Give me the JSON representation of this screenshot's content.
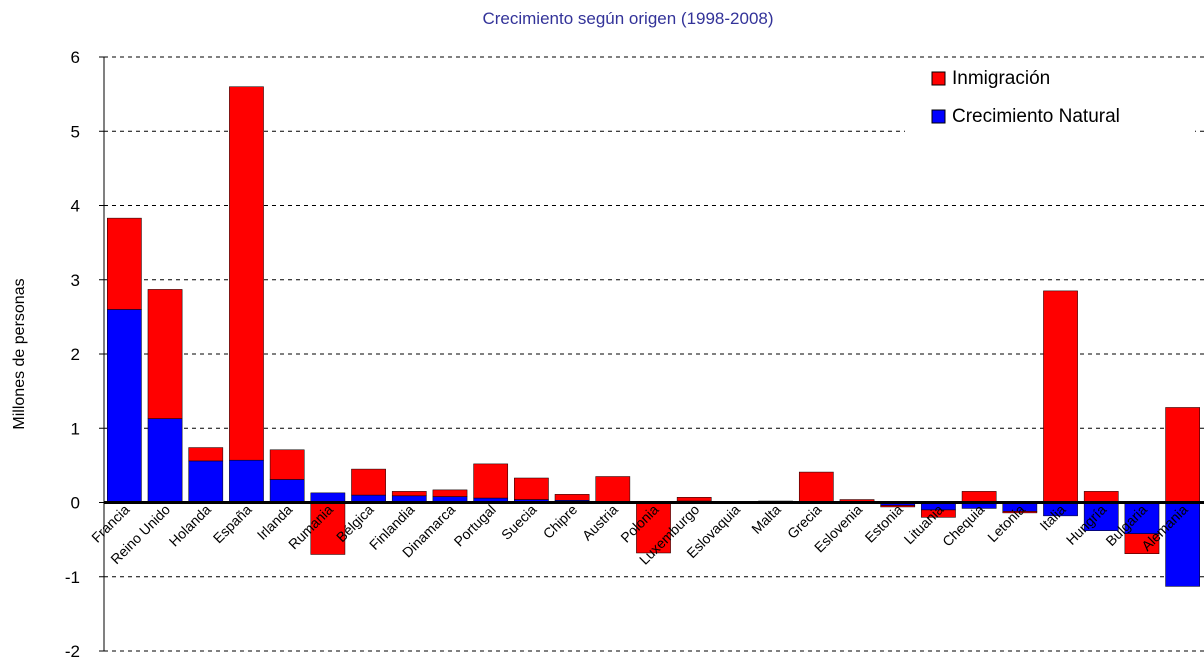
{
  "chart_data": {
    "type": "bar",
    "stacked": true,
    "title": "Crecimiento según origen (1998-2008)",
    "y_label": "Millones de personas",
    "categories": [
      "Francia",
      "Reino Unido",
      "Holanda",
      "España",
      "Irlanda",
      "Rumania",
      "Bélgica",
      "Finlandia",
      "Dinamarca",
      "Portugal",
      "Suecia",
      "Chipre",
      "Austria",
      "Polonia",
      "Luxemburgo",
      "Eslovaquia",
      "Malta",
      "Grecia",
      "Eslovenia",
      "Estonia",
      "Lituania",
      "Chequia",
      "Letonia",
      "Italia",
      "Hungría",
      "Bulgaria",
      "Alemania"
    ],
    "series": [
      {
        "name": "Crecimiento Natural",
        "color": "#0000ff",
        "values": [
          2.6,
          1.13,
          0.56,
          0.57,
          0.31,
          0.13,
          0.1,
          0.09,
          0.08,
          0.06,
          0.04,
          0.03,
          0.01,
          0,
          0.02,
          0.01,
          0.01,
          0.01,
          0.01,
          -0.04,
          -0.1,
          -0.08,
          -0.12,
          -0.18,
          -0.38,
          -0.42,
          -1.13
        ]
      },
      {
        "name": "Inmigración",
        "color": "#ff0000",
        "values": [
          1.23,
          1.74,
          0.18,
          5.03,
          0.4,
          -0.7,
          0.35,
          0.06,
          0.09,
          0.46,
          0.29,
          0.08,
          0.34,
          -0.68,
          0.05,
          0,
          0.01,
          0.4,
          0.03,
          -0.02,
          -0.1,
          0.15,
          -0.02,
          2.85,
          0.15,
          -0.27,
          1.28
        ]
      }
    ],
    "ylim": [
      -2,
      6
    ],
    "yticks": [
      -2,
      -1,
      0,
      1,
      2,
      3,
      4,
      5,
      6
    ],
    "grid": true,
    "legend": "upper right"
  }
}
